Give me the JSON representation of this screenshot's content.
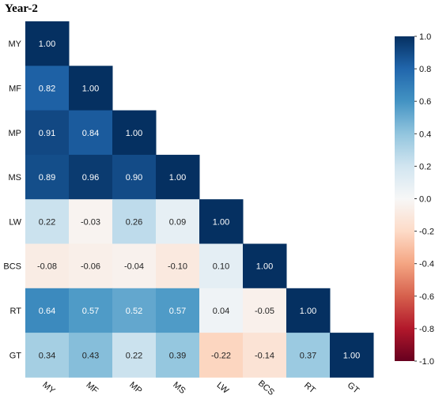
{
  "chart_data": {
    "type": "heatmap",
    "title": "Year-2",
    "labels": [
      "MY",
      "MF",
      "MP",
      "MS",
      "LW",
      "BCS",
      "RT",
      "GT"
    ],
    "matrix": [
      [
        1.0
      ],
      [
        0.82,
        1.0
      ],
      [
        0.91,
        0.84,
        1.0
      ],
      [
        0.89,
        0.96,
        0.9,
        1.0
      ],
      [
        0.22,
        -0.03,
        0.26,
        0.09,
        1.0
      ],
      [
        -0.08,
        -0.06,
        -0.04,
        -0.1,
        0.1,
        1.0
      ],
      [
        0.64,
        0.57,
        0.52,
        0.57,
        0.04,
        -0.05,
        1.0
      ],
      [
        0.34,
        0.43,
        0.22,
        0.39,
        -0.22,
        -0.14,
        0.37,
        1.0
      ]
    ],
    "value_format": "2 decimals",
    "colorbar": {
      "range": [
        -1.0,
        1.0
      ],
      "ticks": [
        "1.0",
        "0.8",
        "0.6",
        "0.4",
        "0.2",
        "0.0",
        "-0.2",
        "-0.4",
        "-0.6",
        "-0.8",
        "-1.0"
      ],
      "colormap": "RdBu",
      "colors": {
        "neg_end": "#67001f",
        "mid": "#f7f7f7",
        "pos_end": "#053061"
      }
    },
    "grid": false,
    "legend": "colorbar-right"
  }
}
